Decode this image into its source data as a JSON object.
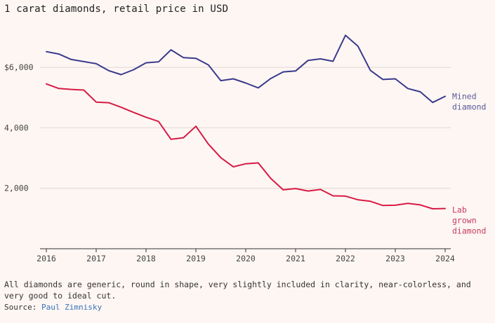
{
  "chart_data": {
    "type": "line",
    "title": "1 carat diamonds, retail price in USD",
    "xlabel": "",
    "ylabel": "",
    "x_ticks": [
      2016,
      2017,
      2018,
      2019,
      2020,
      2021,
      2022,
      2023,
      2024
    ],
    "xlim": [
      2016,
      2024
    ],
    "y_ticks": [
      {
        "value": 2000,
        "label": "2,000"
      },
      {
        "value": 4000,
        "label": "4,000"
      },
      {
        "value": 6000,
        "label": "$6,000"
      }
    ],
    "ylim": [
      0,
      7300
    ],
    "grid": true,
    "series": [
      {
        "name": "Mined diamond",
        "label_lines": [
          "Mined",
          "diamond"
        ],
        "color": "#3a3a8c",
        "label_color": "#5a5a9a",
        "x": [
          2016.0,
          2016.25,
          2016.5,
          2016.75,
          2017.0,
          2017.25,
          2017.5,
          2017.75,
          2018.0,
          2018.25,
          2018.5,
          2018.75,
          2019.0,
          2019.25,
          2019.5,
          2019.75,
          2020.0,
          2020.25,
          2020.5,
          2020.75,
          2021.0,
          2021.25,
          2021.5,
          2021.75,
          2022.0,
          2022.25,
          2022.5,
          2022.75,
          2023.0,
          2023.25,
          2023.5,
          2023.75,
          2024.0
        ],
        "values": [
          6520,
          6440,
          6260,
          6190,
          6120,
          5890,
          5760,
          5920,
          6150,
          6180,
          6580,
          6320,
          6300,
          6080,
          5560,
          5620,
          5480,
          5320,
          5630,
          5850,
          5880,
          6230,
          6280,
          6200,
          7060,
          6700,
          5900,
          5600,
          5620,
          5300,
          5190,
          4840,
          5040
        ]
      },
      {
        "name": "Lab grown diamond",
        "label_lines": [
          "Lab",
          "grown",
          "diamond"
        ],
        "color": "#d81b45",
        "label_color": "#c53b5a",
        "x": [
          2016.0,
          2016.25,
          2016.5,
          2016.75,
          2017.0,
          2017.25,
          2017.5,
          2017.75,
          2018.0,
          2018.25,
          2018.5,
          2018.75,
          2019.0,
          2019.25,
          2019.5,
          2019.75,
          2020.0,
          2020.25,
          2020.5,
          2020.75,
          2021.0,
          2021.25,
          2021.5,
          2021.75,
          2022.0,
          2022.25,
          2022.5,
          2022.75,
          2023.0,
          2023.25,
          2023.5,
          2023.75,
          2024.0
        ],
        "values": [
          5450,
          5300,
          5270,
          5250,
          4850,
          4830,
          4680,
          4510,
          4350,
          4210,
          3620,
          3670,
          4050,
          3460,
          3010,
          2710,
          2810,
          2840,
          2330,
          1950,
          1990,
          1910,
          1960,
          1750,
          1740,
          1620,
          1570,
          1430,
          1440,
          1500,
          1450,
          1320,
          1330
        ]
      }
    ]
  },
  "footnote": "All diamonds are generic, round in shape, very slightly included in clarity, near-colorless, and very good to ideal cut.",
  "source": {
    "label": "Source:",
    "name": "Paul Zimnisky",
    "link_color": "#3b73b9"
  },
  "colors": {
    "background": "#fdf6f3",
    "gridline": "#e2d6d3",
    "axis": "#333333"
  }
}
